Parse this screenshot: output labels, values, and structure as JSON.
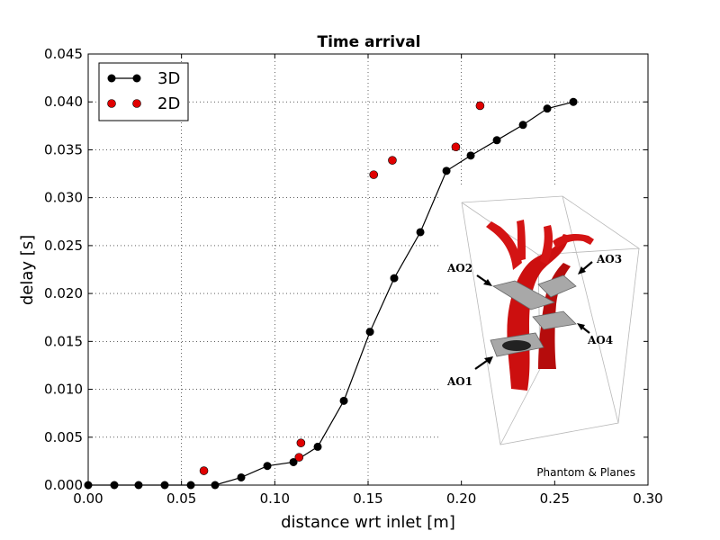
{
  "chart_data": {
    "type": "line",
    "title": "Time arrival",
    "xlabel": "distance wrt inlet [m]",
    "ylabel": "delay [s]",
    "xlim": [
      0.0,
      0.3
    ],
    "ylim": [
      0.0,
      0.045
    ],
    "xticks": [
      "0.00",
      "0.05",
      "0.10",
      "0.15",
      "0.20",
      "0.25",
      "0.30"
    ],
    "yticks": [
      "0.000",
      "0.005",
      "0.010",
      "0.015",
      "0.020",
      "0.025",
      "0.030",
      "0.035",
      "0.040",
      "0.045"
    ],
    "grid": true,
    "legend_position": "top-left",
    "series": [
      {
        "name": "3D",
        "style": "line-markers",
        "color": "#000000",
        "x": [
          0.0,
          0.014,
          0.027,
          0.041,
          0.055,
          0.068,
          0.082,
          0.096,
          0.11,
          0.123,
          0.137,
          0.151,
          0.164,
          0.178,
          0.192,
          0.205,
          0.219,
          0.233,
          0.246,
          0.26
        ],
        "y": [
          0.0,
          0.0,
          0.0,
          0.0,
          0.0,
          0.0,
          0.0008,
          0.002,
          0.0024,
          0.004,
          0.0088,
          0.016,
          0.0216,
          0.0264,
          0.0328,
          0.0344,
          0.036,
          0.0376,
          0.0393,
          0.04
        ]
      },
      {
        "name": "2D",
        "style": "markers",
        "color": "#e00000",
        "x": [
          0.062,
          0.113,
          0.114,
          0.153,
          0.163,
          0.197,
          0.21
        ],
        "y": [
          0.0015,
          0.0029,
          0.0044,
          0.0324,
          0.0339,
          0.0353,
          0.0396
        ]
      }
    ],
    "inset": {
      "labels": [
        "AO1",
        "AO2",
        "AO3",
        "AO4"
      ],
      "caption": "Phantom & Planes",
      "vessel_color": "#d01010",
      "plane_color": "#a0a0a0"
    }
  }
}
